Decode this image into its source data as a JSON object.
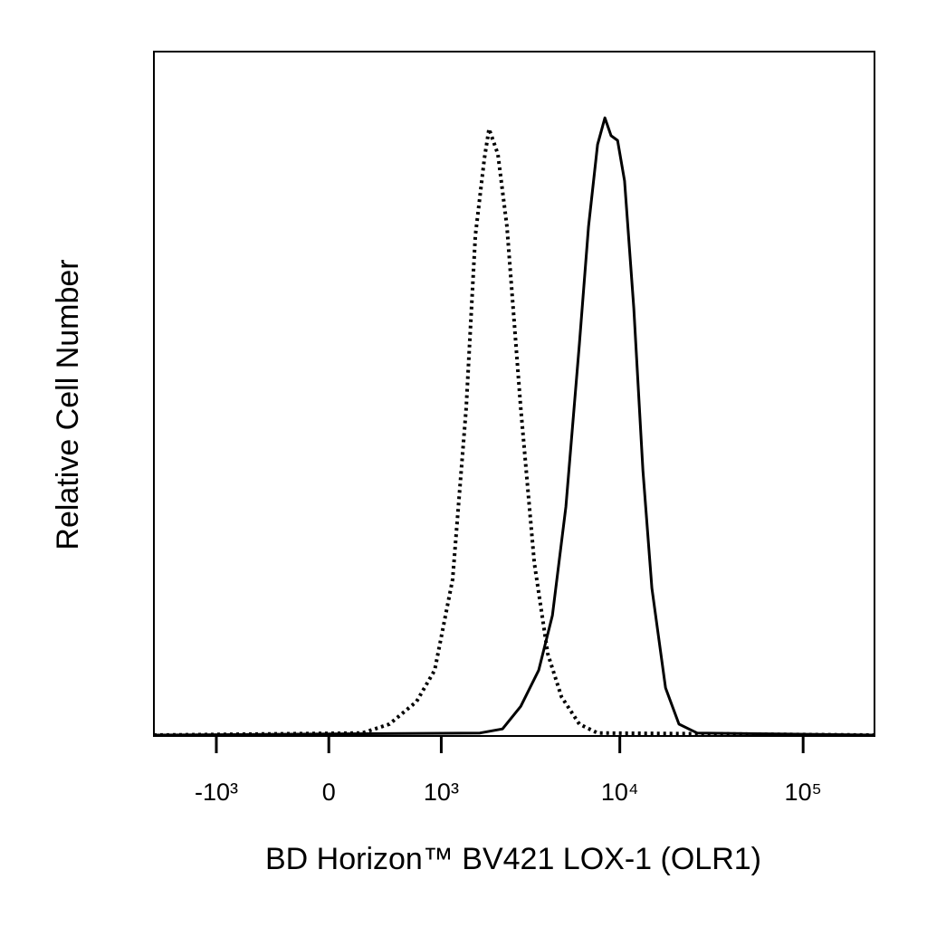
{
  "chart_data": {
    "type": "line",
    "xlabel": "BD Horizon™ BV421 LOX-1 (OLR1)",
    "ylabel": "Relative Cell Number",
    "xscale": "biexponential",
    "xlim": [
      -2300,
      245000
    ],
    "ylim": [
      0,
      100
    ],
    "xticks": [
      {
        "value": -1000,
        "label": "-10³"
      },
      0,
      {
        "value": 1000,
        "label": "10³"
      },
      {
        "value": 10000,
        "label": "10⁴"
      },
      {
        "value": 100000,
        "label": "10⁵"
      }
    ],
    "series": [
      {
        "color": "#000000",
        "style": "dotted",
        "x": [
          -2300,
          224,
          434,
          693,
          911,
          1171,
          1409,
          1590,
          1792,
          1901,
          2134,
          2398,
          2859,
          3398,
          4035,
          4792,
          6009,
          7563,
          245000
        ],
        "values": [
          0,
          0.3,
          1.6,
          4.9,
          9.5,
          22.8,
          47.9,
          73.1,
          84.4,
          88.7,
          85.0,
          74.4,
          47.9,
          25.2,
          11.9,
          5.6,
          1.6,
          0.3,
          0
        ]
      },
      {
        "color": "#000000",
        "style": "solid",
        "x": [
          -2300,
          1689,
          2264,
          2859,
          3595,
          4274,
          5071,
          6009,
          6744,
          7563,
          8288,
          8962,
          9723,
          10619,
          11914,
          13365,
          14970,
          17767,
          21031,
          26418,
          245000
        ],
        "values": [
          0,
          0.3,
          0.9,
          4.2,
          9.5,
          17.5,
          33.4,
          57.2,
          74.4,
          86.4,
          90.3,
          87.7,
          87.0,
          81.1,
          62.5,
          38.7,
          21.5,
          6.9,
          1.6,
          0.3,
          0
        ]
      }
    ]
  }
}
